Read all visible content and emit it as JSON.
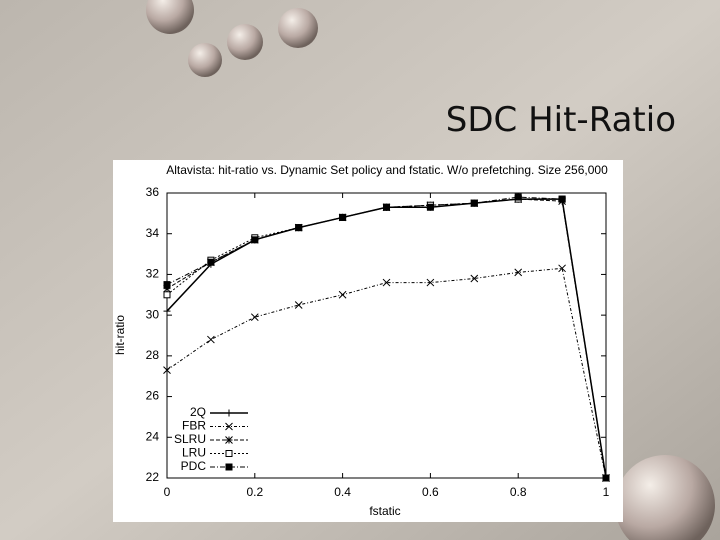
{
  "slide_title": "SDC Hit-Ratio",
  "chart_data": {
    "type": "line",
    "title": "Altavista: hit-ratio vs. Dynamic Set policy and fstatic. W/o prefetching. Size 256,000",
    "x_label": "fstatic",
    "y_label": "hit-ratio",
    "x": [
      0,
      0.1,
      0.2,
      0.3,
      0.4,
      0.5,
      0.6,
      0.7,
      0.8,
      0.9,
      1
    ],
    "series": [
      {
        "name": "2Q",
        "color": "#000000",
        "values": [
          30.2,
          32.5,
          33.7,
          34.3,
          34.8,
          35.3,
          35.3,
          35.5,
          35.7,
          35.7,
          22
        ]
      },
      {
        "name": "FBR",
        "color": "#000000",
        "values": [
          27.3,
          28.8,
          29.9,
          30.5,
          31.0,
          31.6,
          31.6,
          31.8,
          32.1,
          32.3,
          22
        ]
      },
      {
        "name": "SLRU",
        "color": "#000000",
        "values": [
          31.3,
          32.6,
          33.7,
          34.3,
          34.8,
          35.3,
          35.4,
          35.5,
          35.7,
          35.6,
          22
        ]
      },
      {
        "name": "LRU",
        "color": "#000000",
        "values": [
          31.0,
          32.7,
          33.8,
          34.3,
          34.8,
          35.3,
          35.4,
          35.5,
          35.7,
          35.7,
          22
        ]
      },
      {
        "name": "PDC",
        "color": "#000000",
        "values": [
          31.5,
          32.6,
          33.7,
          34.3,
          34.8,
          35.3,
          35.3,
          35.5,
          35.8,
          35.7,
          22
        ]
      }
    ],
    "xlim": [
      0,
      1
    ],
    "xticks": [
      0,
      0.2,
      0.4,
      0.6,
      0.8,
      1
    ],
    "ylim": [
      22,
      36
    ],
    "yticks": [
      22,
      24,
      26,
      28,
      30,
      32,
      34,
      36
    ],
    "legend": "lower-left"
  }
}
